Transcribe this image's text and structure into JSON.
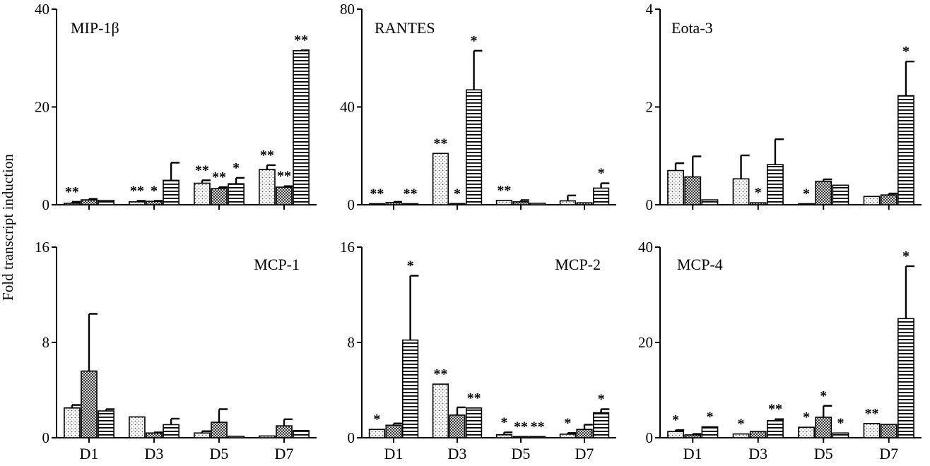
{
  "figure": {
    "ylabel": "Fold transcript induction",
    "categories": [
      "D1",
      "D3",
      "D5",
      "D7"
    ]
  },
  "colors": {
    "axis": "#000000",
    "bar_fill": "#ffffff",
    "dot_pattern": "#555555",
    "checker_dark": "#3a3a3a",
    "checker_light": "#d9d9d9",
    "stripe": "#000000"
  },
  "chart_data": [
    {
      "type": "bar",
      "title": "MIP-1β",
      "categories": [
        "D1",
        "D3",
        "D5",
        "D7"
      ],
      "ylim": [
        0,
        40
      ],
      "yticks": [
        "0",
        "20",
        "40"
      ],
      "series": [
        {
          "pattern": "dotted",
          "values": [
            0.3,
            0.6,
            4.4,
            7.2
          ],
          "errors": [
            0.3,
            0.2,
            0.6,
            0.9
          ],
          "stars": [
            "**",
            "**",
            "**",
            "**"
          ]
        },
        {
          "pattern": "checkered",
          "values": [
            1.0,
            0.7,
            3.3,
            3.6
          ],
          "errors": [
            0.2,
            0.1,
            0.3,
            0.2
          ],
          "stars": [
            "",
            "*",
            "**",
            "**"
          ]
        },
        {
          "pattern": "striped",
          "values": [
            0.9,
            5.0,
            4.3,
            31.5
          ],
          "errors": [
            0,
            3.6,
            1.2,
            0.1
          ],
          "stars": [
            "",
            "",
            "*",
            "**"
          ]
        }
      ]
    },
    {
      "type": "bar",
      "title": "RANTES",
      "categories": [
        "D1",
        "D3",
        "D5",
        "D7"
      ],
      "ylim": [
        0,
        80
      ],
      "yticks": [
        "0",
        "40",
        "80"
      ],
      "series": [
        {
          "pattern": "dotted",
          "values": [
            0.3,
            21,
            1.8,
            1.6
          ],
          "errors": [
            0,
            0,
            0,
            2.2
          ],
          "stars": [
            "**",
            "**",
            "**",
            ""
          ]
        },
        {
          "pattern": "checkered",
          "values": [
            0.9,
            0.5,
            1.2,
            0.8
          ],
          "errors": [
            0.3,
            0,
            0.7,
            0
          ],
          "stars": [
            "",
            "*",
            "",
            ""
          ]
        },
        {
          "pattern": "striped",
          "values": [
            0.3,
            47,
            0.6,
            6.8
          ],
          "errors": [
            0,
            16,
            0,
            2
          ],
          "stars": [
            "**",
            "*",
            "",
            "*"
          ]
        }
      ]
    },
    {
      "type": "bar",
      "title": "Eota-3",
      "categories": [
        "D1",
        "D3",
        "D5",
        "D7"
      ],
      "ylim": [
        0,
        4
      ],
      "yticks": [
        "0",
        "2",
        "4"
      ],
      "series": [
        {
          "pattern": "dotted",
          "values": [
            0.7,
            0.53,
            0.02,
            0.17
          ],
          "errors": [
            0.15,
            0.48,
            0,
            0
          ],
          "stars": [
            "",
            "",
            "*",
            ""
          ]
        },
        {
          "pattern": "checkered",
          "values": [
            0.57,
            0.04,
            0.48,
            0.2
          ],
          "errors": [
            0.42,
            0,
            0.04,
            0.03
          ],
          "stars": [
            "",
            "*",
            "",
            ""
          ]
        },
        {
          "pattern": "striped",
          "values": [
            0.1,
            0.82,
            0.4,
            2.23
          ],
          "errors": [
            0,
            0.52,
            0,
            0.7
          ],
          "stars": [
            "",
            "",
            "",
            "*"
          ]
        }
      ]
    },
    {
      "type": "bar",
      "title": "MCP-1",
      "categories": [
        "D1",
        "D3",
        "D5",
        "D7"
      ],
      "ylim": [
        0,
        16
      ],
      "yticks": [
        "0",
        "8",
        "16"
      ],
      "series": [
        {
          "pattern": "dotted",
          "values": [
            2.5,
            1.75,
            0.4,
            0.15
          ],
          "errors": [
            0.25,
            0,
            0.15,
            0
          ],
          "stars": [
            "",
            "",
            "",
            ""
          ]
        },
        {
          "pattern": "checkered",
          "values": [
            5.6,
            0.4,
            1.3,
            1.0
          ],
          "errors": [
            4.8,
            0.05,
            1.1,
            0.55
          ],
          "stars": [
            "",
            "",
            "",
            ""
          ]
        },
        {
          "pattern": "striped",
          "values": [
            2.25,
            1.1,
            0.12,
            0.6
          ],
          "errors": [
            0.15,
            0.5,
            0,
            0
          ],
          "stars": [
            "",
            "",
            "",
            ""
          ]
        }
      ]
    },
    {
      "type": "bar",
      "title": "MCP-2",
      "categories": [
        "D1",
        "D3",
        "D5",
        "D7"
      ],
      "ylim": [
        0,
        16
      ],
      "yticks": [
        "0",
        "8",
        "16"
      ],
      "series": [
        {
          "pattern": "dotted",
          "values": [
            0.7,
            4.5,
            0.25,
            0.3
          ],
          "errors": [
            0,
            0,
            0.2,
            0.1
          ],
          "stars": [
            "*",
            "**",
            "*",
            "*"
          ]
        },
        {
          "pattern": "checkered",
          "values": [
            1.05,
            1.9,
            0.1,
            0.7
          ],
          "errors": [
            0.15,
            0.65,
            0,
            0.4
          ],
          "stars": [
            "",
            "",
            "**",
            ""
          ]
        },
        {
          "pattern": "striped",
          "values": [
            8.2,
            2.5,
            0.1,
            2.1
          ],
          "errors": [
            5.4,
            0,
            0,
            0.3
          ],
          "stars": [
            "*",
            "**",
            "**",
            "*"
          ]
        }
      ]
    },
    {
      "type": "bar",
      "title": "MCP-4",
      "categories": [
        "D1",
        "D3",
        "D5",
        "D7"
      ],
      "ylim": [
        0,
        40
      ],
      "yticks": [
        "0",
        "20",
        "40"
      ],
      "series": [
        {
          "pattern": "dotted",
          "values": [
            1.3,
            0.8,
            2.2,
            3.0
          ],
          "errors": [
            0.3,
            0,
            0,
            0
          ],
          "stars": [
            "*",
            "*",
            "*",
            "**"
          ]
        },
        {
          "pattern": "checkered",
          "values": [
            0.6,
            1.3,
            4.3,
            2.8
          ],
          "errors": [
            0.2,
            0,
            2.4,
            0
          ],
          "stars": [
            "",
            "",
            "*",
            ""
          ]
        },
        {
          "pattern": "striped",
          "values": [
            2.3,
            3.6,
            1.0,
            25.0
          ],
          "errors": [
            0,
            0.3,
            0,
            11
          ],
          "stars": [
            "*",
            "**",
            "*",
            "*"
          ]
        }
      ]
    }
  ]
}
